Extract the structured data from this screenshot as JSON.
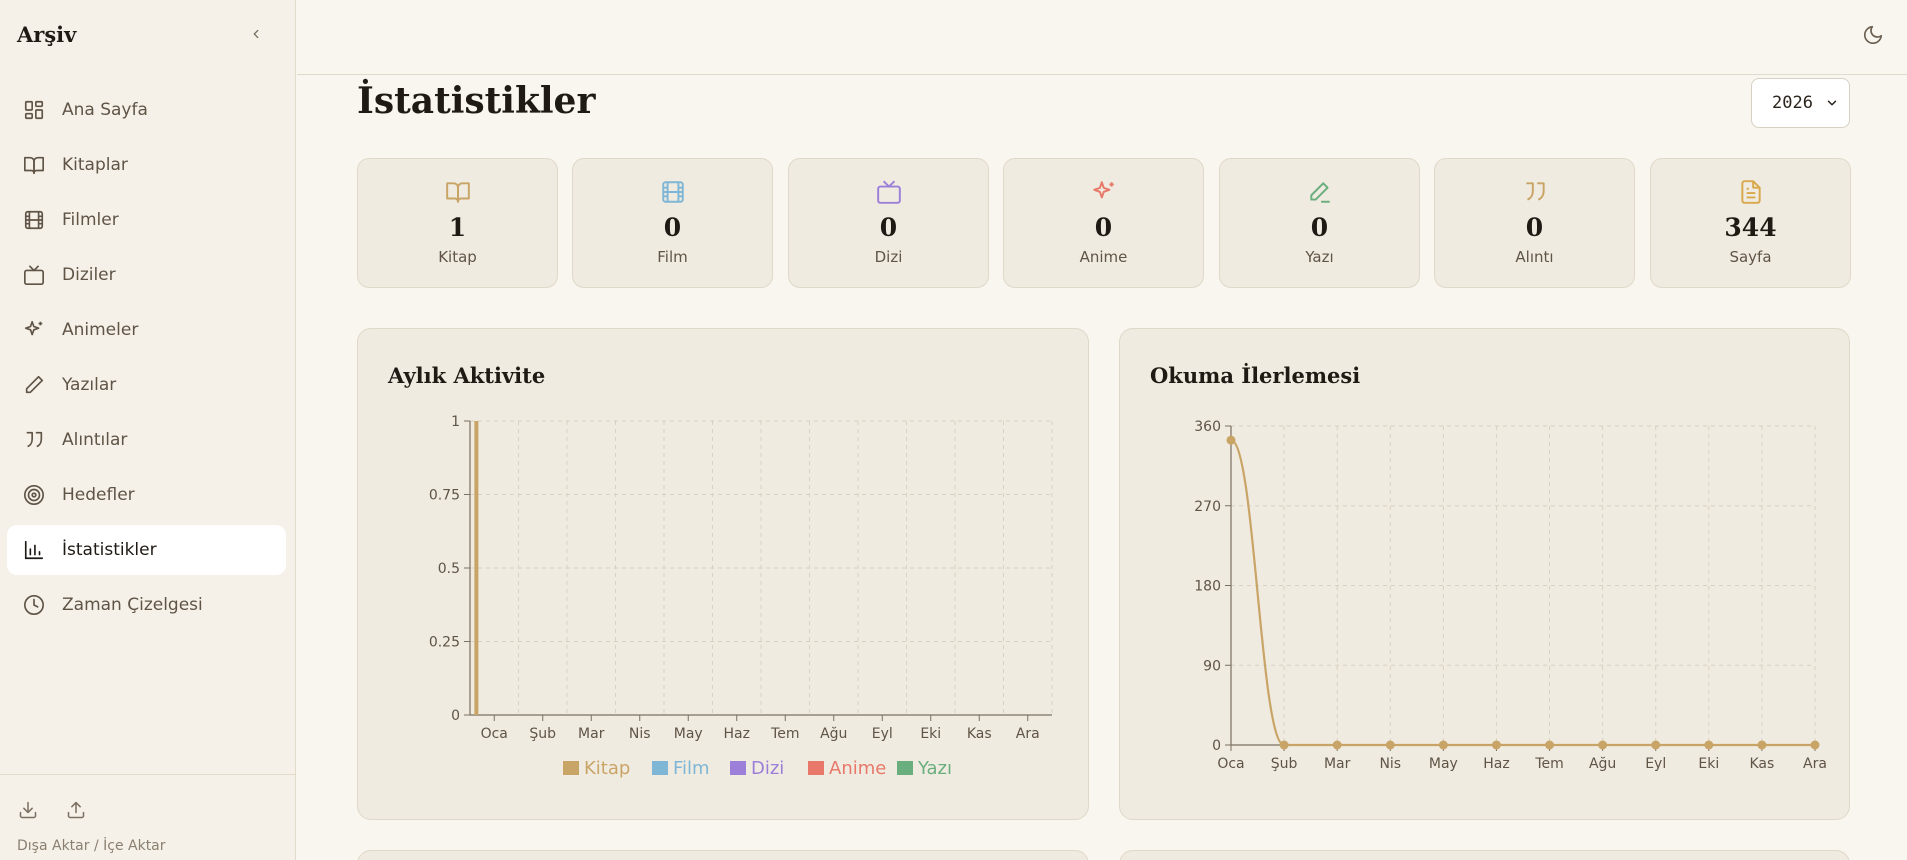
{
  "sidebar": {
    "brand": "Arşiv",
    "items": [
      {
        "label": "Ana Sayfa",
        "icon": "dashboard-icon"
      },
      {
        "label": "Kitaplar",
        "icon": "book-icon"
      },
      {
        "label": "Filmler",
        "icon": "film-icon"
      },
      {
        "label": "Diziler",
        "icon": "tv-icon"
      },
      {
        "label": "Animeler",
        "icon": "sparkles-icon"
      },
      {
        "label": "Yazılar",
        "icon": "pen-icon"
      },
      {
        "label": "Alıntılar",
        "icon": "quote-icon"
      },
      {
        "label": "Hedefler",
        "icon": "target-icon"
      },
      {
        "label": "İstatistikler",
        "icon": "bar-chart-icon",
        "active": true
      },
      {
        "label": "Zaman Çizelgesi",
        "icon": "clock-icon"
      }
    ],
    "footer_text": "Dışa Aktar / İçe Aktar"
  },
  "page": {
    "title": "İstatistikler",
    "year": "2026"
  },
  "stats": [
    {
      "value": "1",
      "label": "Kitap",
      "icon": "book-icon",
      "color": "#c9a467"
    },
    {
      "value": "0",
      "label": "Film",
      "icon": "film-icon",
      "color": "#7fb6d6"
    },
    {
      "value": "0",
      "label": "Dizi",
      "icon": "tv-icon",
      "color": "#9c7fd8"
    },
    {
      "value": "0",
      "label": "Anime",
      "icon": "sparkles-icon",
      "color": "#e8786a"
    },
    {
      "value": "0",
      "label": "Yazı",
      "icon": "pen-icon",
      "color": "#6aae7e"
    },
    {
      "value": "0",
      "label": "Alıntı",
      "icon": "quote-icon",
      "color": "#c9a467"
    },
    {
      "value": "344",
      "label": "Sayfa",
      "icon": "file-icon",
      "color": "#d8a84a"
    }
  ],
  "chart_data": [
    {
      "type": "bar",
      "title": "Aylık Aktivite",
      "categories": [
        "Oca",
        "Şub",
        "Mar",
        "Nis",
        "May",
        "Haz",
        "Tem",
        "Ağu",
        "Eyl",
        "Eki",
        "Kas",
        "Ara"
      ],
      "ylim": [
        0,
        1
      ],
      "yticks": [
        "0",
        "0.25",
        "0.5",
        "0.75",
        "1"
      ],
      "series": [
        {
          "name": "Kitap",
          "color": "#c9a467",
          "values": [
            1,
            0,
            0,
            0,
            0,
            0,
            0,
            0,
            0,
            0,
            0,
            0
          ]
        },
        {
          "name": "Film",
          "color": "#7fb6d6",
          "values": [
            0,
            0,
            0,
            0,
            0,
            0,
            0,
            0,
            0,
            0,
            0,
            0
          ]
        },
        {
          "name": "Dizi",
          "color": "#9c7fd8",
          "values": [
            0,
            0,
            0,
            0,
            0,
            0,
            0,
            0,
            0,
            0,
            0,
            0
          ]
        },
        {
          "name": "Anime",
          "color": "#e8786a",
          "values": [
            0,
            0,
            0,
            0,
            0,
            0,
            0,
            0,
            0,
            0,
            0,
            0
          ]
        },
        {
          "name": "Yazı",
          "color": "#6aae7e",
          "values": [
            0,
            0,
            0,
            0,
            0,
            0,
            0,
            0,
            0,
            0,
            0,
            0
          ]
        }
      ],
      "grid": true,
      "legend": "bottom-center"
    },
    {
      "type": "line",
      "title": "Okuma İlerlemesi",
      "categories": [
        "Oca",
        "Şub",
        "Mar",
        "Nis",
        "May",
        "Haz",
        "Tem",
        "Ağu",
        "Eyl",
        "Eki",
        "Kas",
        "Ara"
      ],
      "ylim": [
        0,
        360
      ],
      "yticks": [
        "0",
        "90",
        "180",
        "270",
        "360"
      ],
      "series": [
        {
          "color": "#c9a467",
          "values": [
            344,
            0,
            0,
            0,
            0,
            0,
            0,
            0,
            0,
            0,
            0,
            0
          ]
        }
      ],
      "grid": true
    }
  ]
}
